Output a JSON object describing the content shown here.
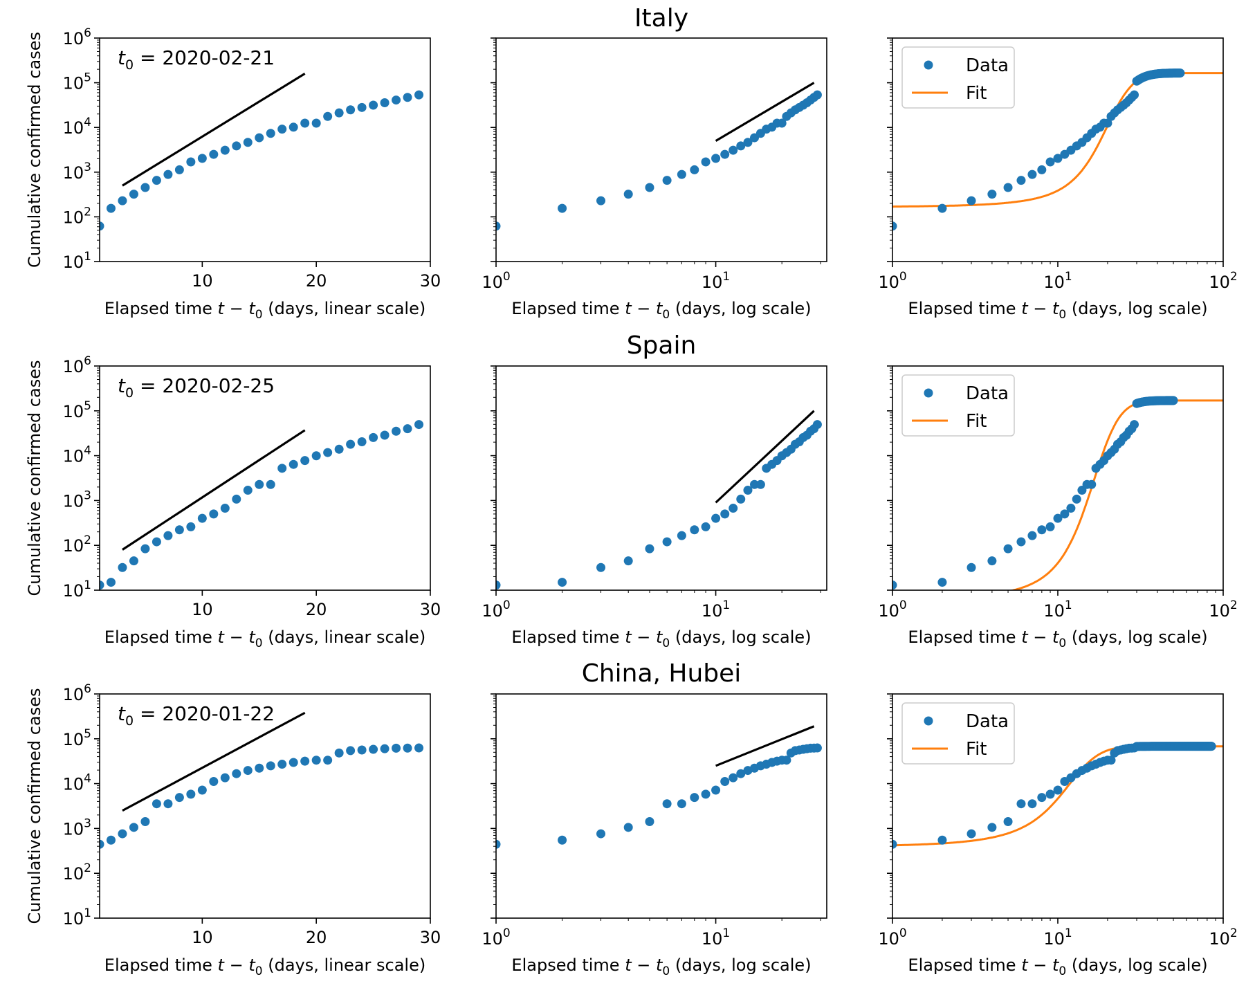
{
  "figure": {
    "ylabel": "Cumulative confirmed cases",
    "xlabel_linear": "(days, linear scale)",
    "xlabel_log": "(days, log scale)",
    "xlabel_prefix": "Elapsed time",
    "t0_label": "t",
    "t0_sub": "0",
    "colors": {
      "data": "#1f77b4",
      "fit": "#ff7f0e",
      "guide": "#000000"
    },
    "legend": {
      "data": "Data",
      "fit": "Fit"
    }
  },
  "chart_data": [
    {
      "type": "scatter",
      "title": "Italy",
      "t0": "2020-02-21",
      "x": [
        1,
        2,
        3,
        4,
        5,
        6,
        7,
        8,
        9,
        10,
        11,
        12,
        13,
        14,
        15,
        16,
        17,
        18,
        19,
        20,
        21,
        22,
        23,
        24,
        25,
        26,
        27,
        28,
        29
      ],
      "y": [
        62,
        155,
        229,
        322,
        453,
        655,
        888,
        1128,
        1694,
        2036,
        2502,
        3089,
        3858,
        4636,
        5883,
        7375,
        9172,
        10149,
        12462,
        12462,
        17660,
        21157,
        24747,
        27980,
        31506,
        35713,
        41035,
        47021,
        53578
      ],
      "fit_x_range": [
        1,
        100
      ],
      "fit_plateau": 165000,
      "fit_start": 165,
      "guide_linear": [
        [
          3,
          500
        ],
        [
          19,
          160000
        ]
      ],
      "guide_log": [
        [
          10,
          5000
        ],
        [
          28,
          100000
        ]
      ],
      "ylim": [
        10,
        1000000
      ],
      "xlim_linear": [
        1,
        30
      ],
      "xlim_log_mid": [
        1,
        32
      ],
      "xlim_log_right": [
        1,
        100
      ],
      "data_x_max_right": 55
    },
    {
      "type": "scatter",
      "title": "Spain",
      "t0": "2020-02-25",
      "x": [
        1,
        2,
        3,
        4,
        5,
        6,
        7,
        8,
        9,
        10,
        11,
        12,
        13,
        14,
        15,
        16,
        17,
        18,
        19,
        20,
        21,
        22,
        23,
        24,
        25,
        26,
        27,
        28,
        29
      ],
      "y": [
        13,
        15,
        32,
        45,
        84,
        120,
        165,
        222,
        259,
        400,
        500,
        673,
        1073,
        1695,
        2277,
        2277,
        5232,
        6391,
        7798,
        9942,
        11748,
        13910,
        17963,
        20410,
        25374,
        28603,
        35136,
        39885,
        49515
      ],
      "fit_x_range": [
        1,
        100
      ],
      "fit_plateau": 170000,
      "fit_start": 6,
      "guide_linear": [
        [
          3,
          80
        ],
        [
          19,
          37000
        ]
      ],
      "guide_log": [
        [
          10,
          900
        ],
        [
          28,
          100000
        ]
      ],
      "ylim": [
        10,
        1000000
      ],
      "xlim_linear": [
        1,
        30
      ],
      "xlim_log_mid": [
        1,
        32
      ],
      "xlim_log_right": [
        1,
        100
      ],
      "data_x_max_right": 50
    },
    {
      "type": "scatter",
      "title": "China, Hubei",
      "t0": "2020-01-22",
      "x": [
        1,
        2,
        3,
        4,
        5,
        6,
        7,
        8,
        9,
        10,
        11,
        12,
        13,
        14,
        15,
        16,
        17,
        18,
        19,
        20,
        21,
        22,
        23,
        24,
        25,
        26,
        27,
        28,
        29
      ],
      "y": [
        444,
        549,
        761,
        1058,
        1423,
        3554,
        3554,
        4903,
        5806,
        7153,
        11177,
        13522,
        16678,
        19665,
        22112,
        24953,
        27100,
        29631,
        31728,
        33366,
        33366,
        48206,
        54406,
        56249,
        58182,
        59989,
        61682,
        62031,
        62442
      ],
      "fit_x_range": [
        1,
        100
      ],
      "fit_plateau": 68000,
      "fit_start": 390,
      "guide_linear": [
        [
          3,
          2500
        ],
        [
          19,
          380000
        ]
      ],
      "guide_log": [
        [
          10,
          25000
        ],
        [
          28,
          190000
        ]
      ],
      "ylim": [
        10,
        1000000
      ],
      "xlim_linear": [
        1,
        30
      ],
      "xlim_log_mid": [
        1,
        32
      ],
      "xlim_log_right": [
        1,
        100
      ],
      "data_x_max_right": 85
    }
  ]
}
